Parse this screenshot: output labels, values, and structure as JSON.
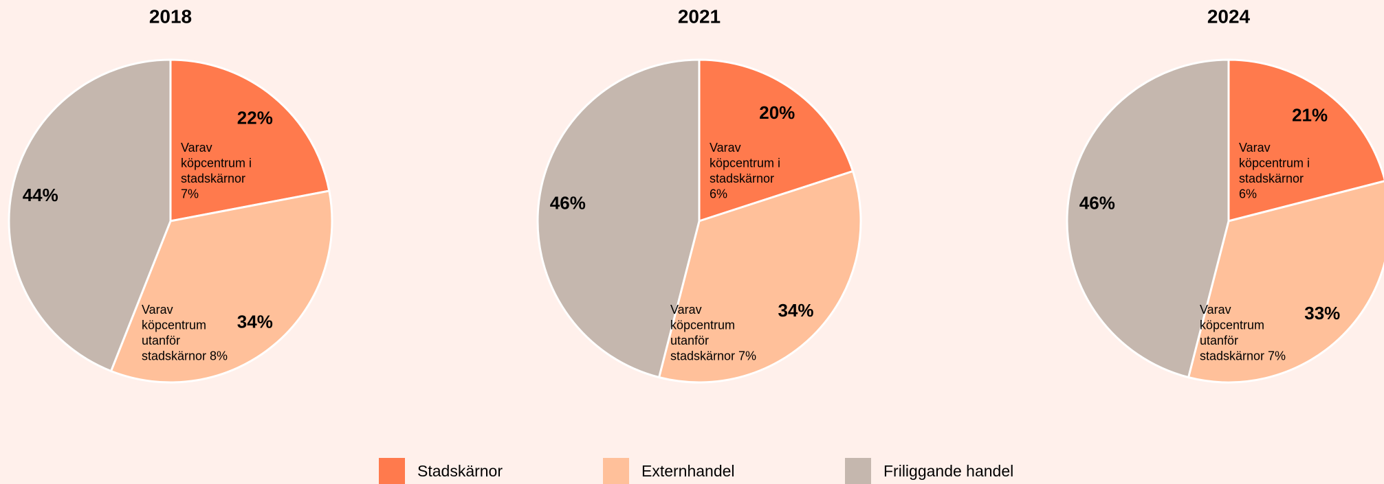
{
  "chart_data": [
    {
      "type": "pie",
      "title": "2018",
      "categories": [
        "Stadskärnor",
        "Externhandel",
        "Friliggande handel"
      ],
      "values": [
        22,
        34,
        44
      ],
      "value_labels": [
        "22%",
        "34%",
        "44%"
      ],
      "colors": [
        "#FF7A4D",
        "#FFC09A",
        "#C5B7AE"
      ],
      "annotations": [
        [
          "Varav",
          "köpcentrum i",
          "stadskärnor",
          "7%"
        ],
        [
          "Varav",
          "köpcentrum",
          "utanför",
          "stadskärnor 8%"
        ]
      ]
    },
    {
      "type": "pie",
      "title": "2021",
      "categories": [
        "Stadskärnor",
        "Externhandel",
        "Friliggande handel"
      ],
      "values": [
        20,
        34,
        46
      ],
      "value_labels": [
        "20%",
        "34%",
        "46%"
      ],
      "colors": [
        "#FF7A4D",
        "#FFC09A",
        "#C5B7AE"
      ],
      "annotations": [
        [
          "Varav",
          "köpcentrum i",
          "stadskärnor",
          "6%"
        ],
        [
          "Varav",
          "köpcentrum",
          "utanför",
          "stadskärnor 7%"
        ]
      ]
    },
    {
      "type": "pie",
      "title": "2024",
      "categories": [
        "Stadskärnor",
        "Externhandel",
        "Friliggande handel"
      ],
      "values": [
        21,
        33,
        46
      ],
      "value_labels": [
        "21%",
        "33%",
        "46%"
      ],
      "colors": [
        "#FF7A4D",
        "#FFC09A",
        "#C5B7AE"
      ],
      "annotations": [
        [
          "Varav",
          "köpcentrum i",
          "stadskärnor",
          "6%"
        ],
        [
          "Varav",
          "köpcentrum",
          "utanför",
          "stadskärnor 7%"
        ]
      ]
    }
  ]
}
